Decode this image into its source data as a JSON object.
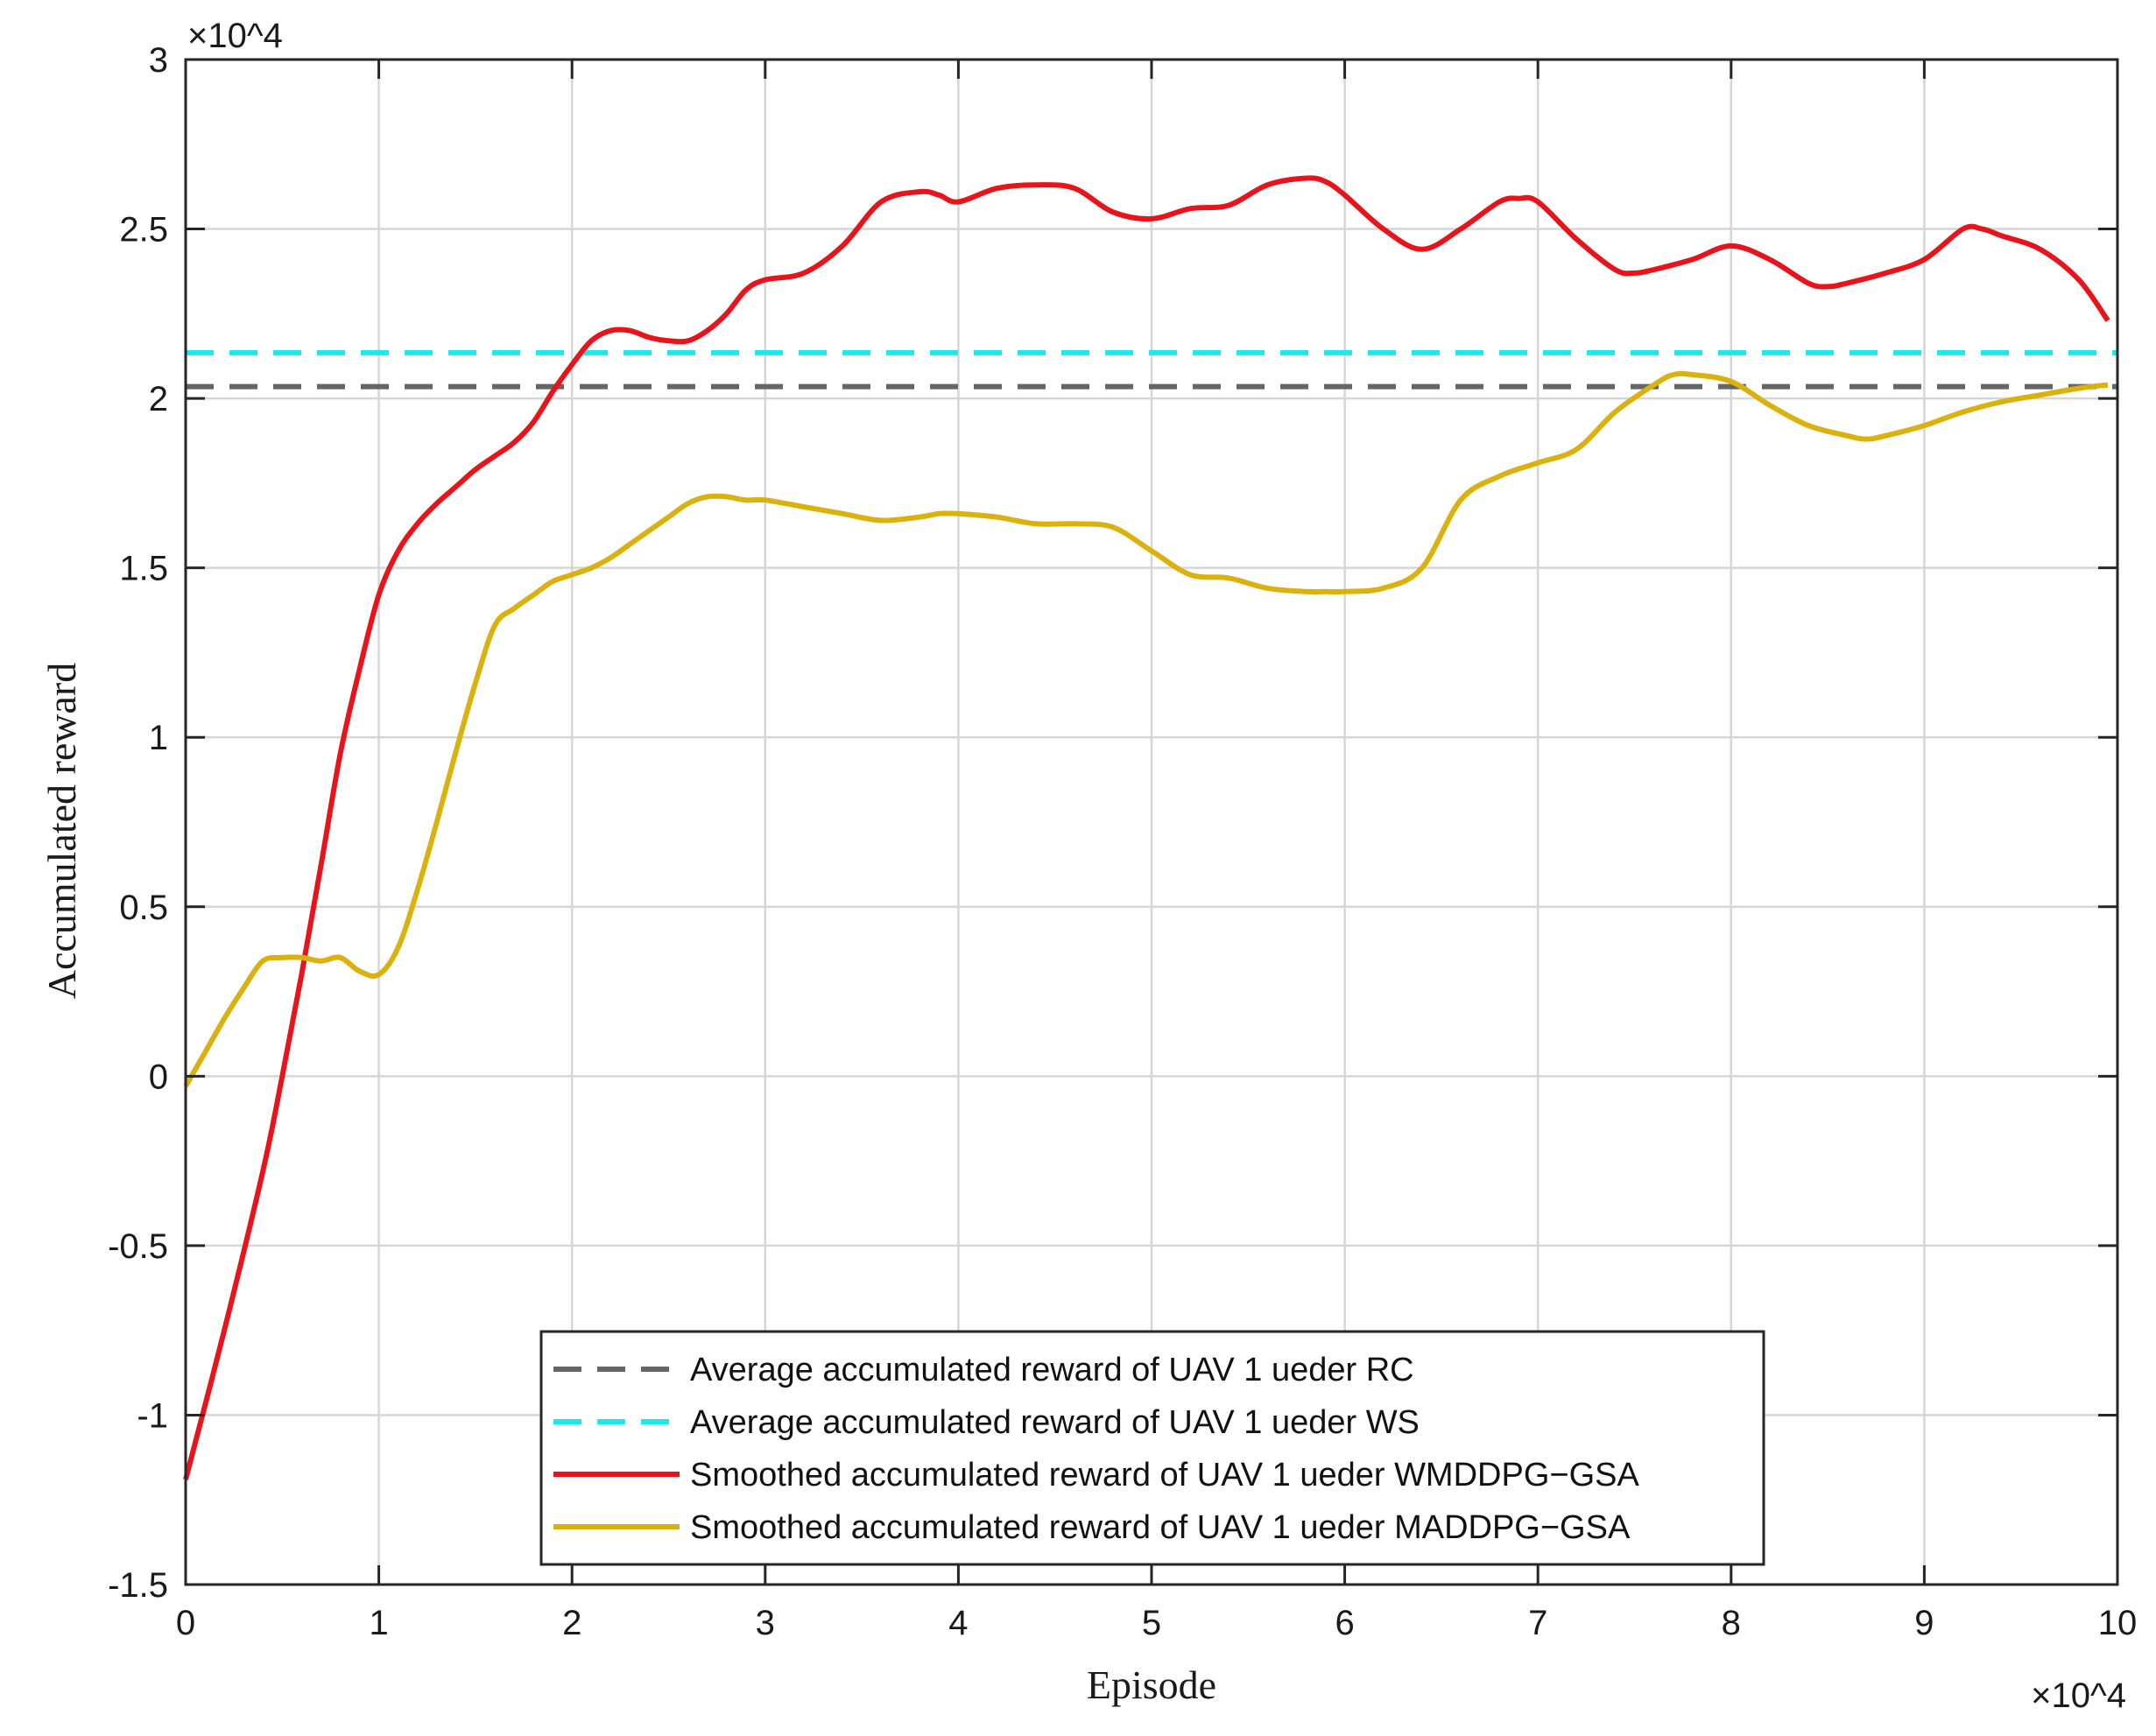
{
  "chart_data": {
    "type": "line",
    "xlabel": "Episode",
    "ylabel": "Accumulated reward",
    "x_exponent_label": "×10^4",
    "y_exponent_label": "×10^4",
    "xlim": [
      0,
      10
    ],
    "ylim": [
      -1.5,
      3
    ],
    "x_ticks": [
      "0",
      "1",
      "2",
      "3",
      "4",
      "5",
      "6",
      "7",
      "8",
      "9",
      "10"
    ],
    "y_ticks": [
      "-1.5",
      "-1",
      "-0.5",
      "0",
      "0.5",
      "1",
      "1.5",
      "2",
      "2.5",
      "3"
    ],
    "grid": true,
    "legend_position": "bottom-center",
    "series": [
      {
        "name": "Average accumulated reward of UAV 1 ueder RC",
        "color": "#666666",
        "style": "dashed",
        "x": [
          0,
          10
        ],
        "y": [
          2.035,
          2.035
        ]
      },
      {
        "name": "Average accumulated reward of UAV 1 ueder WS",
        "color": "#1de8ea",
        "style": "dashed",
        "x": [
          0,
          10
        ],
        "y": [
          2.135,
          2.135
        ]
      },
      {
        "name": "Smoothed accumulated reward of UAV 1 ueder WMDDPG−GSA",
        "color": "#e8141c",
        "style": "solid",
        "x": [
          0,
          0.2,
          0.4,
          0.5,
          0.6,
          0.7,
          0.8,
          0.9,
          1.0,
          1.1,
          1.2,
          1.3,
          1.4,
          1.5,
          1.6,
          1.7,
          1.8,
          1.9,
          2.0,
          2.1,
          2.2,
          2.3,
          2.4,
          2.5,
          2.6,
          2.7,
          2.8,
          2.9,
          3.0,
          3.2,
          3.4,
          3.6,
          3.8,
          3.9,
          4.0,
          4.2,
          4.4,
          4.6,
          4.8,
          5.0,
          5.2,
          5.4,
          5.6,
          5.8,
          5.9,
          6.0,
          6.2,
          6.4,
          6.6,
          6.8,
          6.9,
          7.0,
          7.2,
          7.4,
          7.5,
          7.6,
          7.8,
          8.0,
          8.2,
          8.4,
          8.5,
          8.6,
          8.8,
          9.0,
          9.2,
          9.3,
          9.4,
          9.6,
          9.8,
          9.95
        ],
        "y": [
          -1.19,
          -0.75,
          -0.28,
          0.0,
          0.3,
          0.62,
          0.95,
          1.2,
          1.42,
          1.55,
          1.63,
          1.69,
          1.74,
          1.79,
          1.83,
          1.87,
          1.93,
          2.02,
          2.1,
          2.17,
          2.2,
          2.2,
          2.18,
          2.17,
          2.17,
          2.2,
          2.25,
          2.32,
          2.35,
          2.37,
          2.45,
          2.58,
          2.61,
          2.6,
          2.58,
          2.62,
          2.63,
          2.62,
          2.55,
          2.53,
          2.56,
          2.57,
          2.63,
          2.65,
          2.64,
          2.6,
          2.5,
          2.44,
          2.5,
          2.58,
          2.59,
          2.58,
          2.47,
          2.38,
          2.37,
          2.38,
          2.41,
          2.45,
          2.41,
          2.34,
          2.33,
          2.34,
          2.37,
          2.41,
          2.5,
          2.5,
          2.48,
          2.44,
          2.35,
          2.23
        ]
      },
      {
        "name": "Smoothed accumulated reward of UAV 1 ueder MADDPG−GSA",
        "color": "#dbb10d",
        "style": "solid",
        "x": [
          0,
          0.1,
          0.2,
          0.3,
          0.4,
          0.5,
          0.6,
          0.7,
          0.8,
          0.9,
          1.0,
          1.1,
          1.2,
          1.3,
          1.4,
          1.5,
          1.6,
          1.7,
          1.8,
          1.9,
          2.0,
          2.1,
          2.2,
          2.3,
          2.4,
          2.5,
          2.6,
          2.7,
          2.8,
          2.9,
          3.0,
          3.2,
          3.4,
          3.6,
          3.8,
          3.9,
          4.0,
          4.2,
          4.4,
          4.6,
          4.8,
          5.0,
          5.2,
          5.4,
          5.6,
          5.8,
          5.9,
          6.0,
          6.2,
          6.4,
          6.6,
          6.8,
          7.0,
          7.2,
          7.4,
          7.6,
          7.7,
          7.8,
          8.0,
          8.2,
          8.4,
          8.6,
          8.7,
          8.8,
          9.0,
          9.2,
          9.4,
          9.6,
          9.8,
          9.95
        ],
        "y": [
          -0.03,
          0.07,
          0.17,
          0.26,
          0.34,
          0.35,
          0.35,
          0.34,
          0.35,
          0.31,
          0.3,
          0.38,
          0.55,
          0.75,
          0.96,
          1.16,
          1.33,
          1.38,
          1.42,
          1.46,
          1.48,
          1.5,
          1.53,
          1.57,
          1.61,
          1.65,
          1.69,
          1.71,
          1.71,
          1.7,
          1.7,
          1.68,
          1.66,
          1.64,
          1.65,
          1.66,
          1.66,
          1.65,
          1.63,
          1.63,
          1.62,
          1.55,
          1.48,
          1.47,
          1.44,
          1.43,
          1.43,
          1.43,
          1.44,
          1.5,
          1.7,
          1.77,
          1.81,
          1.85,
          1.96,
          2.04,
          2.07,
          2.07,
          2.05,
          1.98,
          1.92,
          1.89,
          1.88,
          1.89,
          1.92,
          1.96,
          1.99,
          2.01,
          2.03,
          2.04
        ]
      }
    ]
  }
}
